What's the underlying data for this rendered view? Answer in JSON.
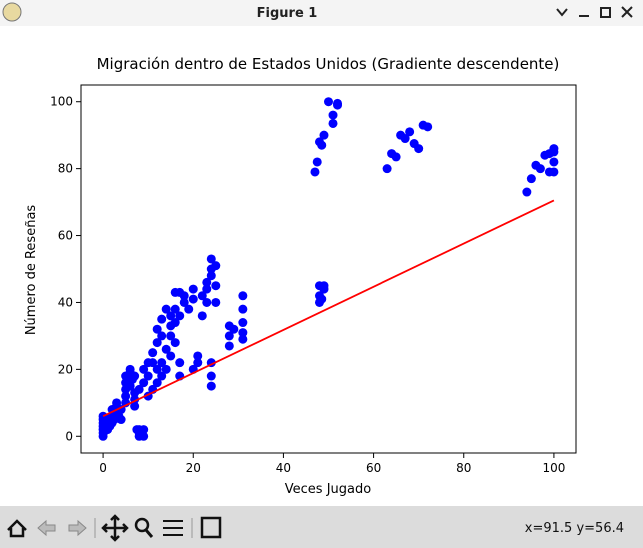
{
  "window": {
    "title": "Figure 1",
    "status": "x=91.5 y=56.4"
  },
  "chart_data": {
    "type": "scatter",
    "title": "Migración dentro de Estados Unidos (Gradiente descendente)",
    "x_label": "Veces Jugado",
    "y_label": "Número de Reseñas",
    "xlim": [
      -4.9,
      104.9
    ],
    "ylim": [
      -5,
      105
    ],
    "xticks": [
      0,
      20,
      40,
      60,
      80,
      100
    ],
    "yticks": [
      0,
      20,
      40,
      60,
      80,
      100
    ],
    "series": [
      {
        "type": "scatter",
        "color": "#0000ff",
        "x": [
          0,
          0,
          0,
          0,
          0,
          0,
          0,
          0.3,
          0.5,
          1,
          1,
          1,
          1.5,
          2,
          2,
          2,
          2.5,
          3,
          3,
          3,
          3.5,
          4,
          4,
          5,
          5,
          5,
          5,
          5,
          6,
          6,
          6,
          6.5,
          7,
          7,
          7,
          7,
          8,
          8,
          8,
          7.5,
          9,
          9,
          8,
          9,
          9,
          10,
          10,
          10,
          11,
          11,
          11,
          12,
          12,
          12,
          12,
          13,
          13,
          13,
          13,
          14,
          14,
          14,
          15,
          15,
          15,
          15,
          16,
          16,
          16,
          16,
          17,
          17,
          17,
          17,
          18,
          18,
          19,
          20,
          20,
          20,
          21,
          21,
          22,
          22,
          23,
          23,
          23,
          24,
          24,
          24,
          24,
          24,
          24,
          25,
          25,
          25,
          28,
          28,
          28,
          29,
          31,
          31,
          31,
          31,
          31,
          47,
          47.5,
          48,
          48.5,
          49,
          50,
          51,
          51,
          52,
          52,
          48,
          48,
          48,
          49,
          49,
          48.5,
          63,
          64,
          65,
          66,
          67,
          68,
          69,
          70,
          71,
          72,
          94,
          95,
          96,
          97,
          98,
          99,
          99,
          100,
          100,
          100,
          100
        ],
        "values": [
          0,
          1,
          2,
          3,
          4,
          5,
          6,
          1.5,
          3,
          2,
          4,
          5.5,
          3,
          4,
          6,
          8,
          5,
          7,
          9,
          10,
          6,
          8,
          5,
          10,
          12,
          14,
          16,
          18,
          15,
          19,
          20,
          17,
          13,
          11,
          9,
          18,
          0,
          1,
          2,
          2,
          0,
          2,
          14,
          16,
          20,
          22,
          18,
          12,
          22,
          25,
          14,
          28,
          32,
          20,
          16,
          35,
          30,
          22,
          18,
          38,
          26,
          20,
          33,
          36,
          30,
          24,
          43,
          38,
          34,
          28,
          43,
          36,
          22,
          18,
          42,
          40,
          38,
          41,
          44,
          20,
          24,
          22,
          42,
          36,
          40,
          44,
          46,
          48,
          50,
          53,
          22,
          15,
          18,
          51,
          45,
          40,
          33,
          30,
          27,
          32,
          42,
          38,
          34,
          31,
          29,
          79,
          82,
          88,
          87,
          90,
          100,
          96,
          93.5,
          99,
          99.5,
          42,
          45,
          40,
          44,
          45,
          41,
          80,
          84.5,
          83.5,
          90,
          89,
          91,
          87.5,
          86,
          93,
          92.5,
          73,
          77,
          81,
          80,
          84,
          84.5,
          79,
          86,
          85,
          82,
          79
        ]
      },
      {
        "type": "line",
        "color": "#ff0000",
        "x": [
          0,
          100
        ],
        "values": [
          6,
          70.5
        ]
      }
    ]
  }
}
